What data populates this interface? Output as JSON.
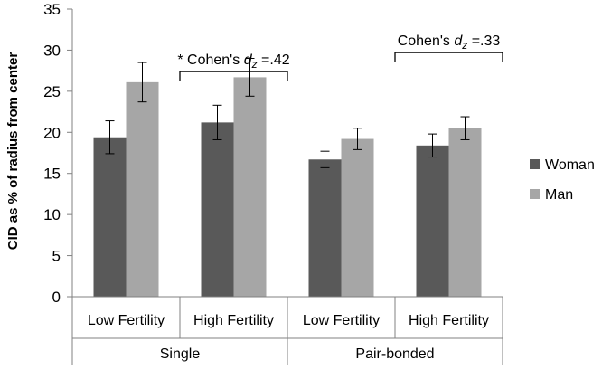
{
  "chart_data": {
    "type": "bar",
    "ylabel": "CID as % of radius from center",
    "ylim": [
      0,
      35
    ],
    "yticks": [
      "0",
      "5",
      "10",
      "15",
      "20",
      "25",
      "30",
      "35"
    ],
    "groups": [
      "Single",
      "Pair-bonded"
    ],
    "categories": [
      "Low Fertility",
      "High Fertility",
      "Low Fertility",
      "High Fertility"
    ],
    "series": [
      {
        "name": "Woman",
        "color": "#595959",
        "values": [
          19.4,
          21.2,
          16.7,
          18.4
        ],
        "errors": [
          2.0,
          2.1,
          1.0,
          1.4
        ]
      },
      {
        "name": "Man",
        "color": "#a6a6a6",
        "values": [
          26.1,
          26.7,
          19.2,
          20.5
        ],
        "errors": [
          2.4,
          2.3,
          1.3,
          1.4
        ]
      }
    ],
    "annotations": [
      {
        "star": "* ",
        "prefix": "Cohen's ",
        "var": "d",
        "sub": "z",
        "value": " =.42",
        "from_category": 0.5,
        "to_category": 1.5,
        "y": 27.4
      },
      {
        "star": "",
        "prefix": "Cohen's ",
        "var": "d",
        "sub": "z",
        "value": " =.33",
        "from_category": 2.5,
        "to_category": 3.5,
        "y": 29.7
      }
    ]
  }
}
